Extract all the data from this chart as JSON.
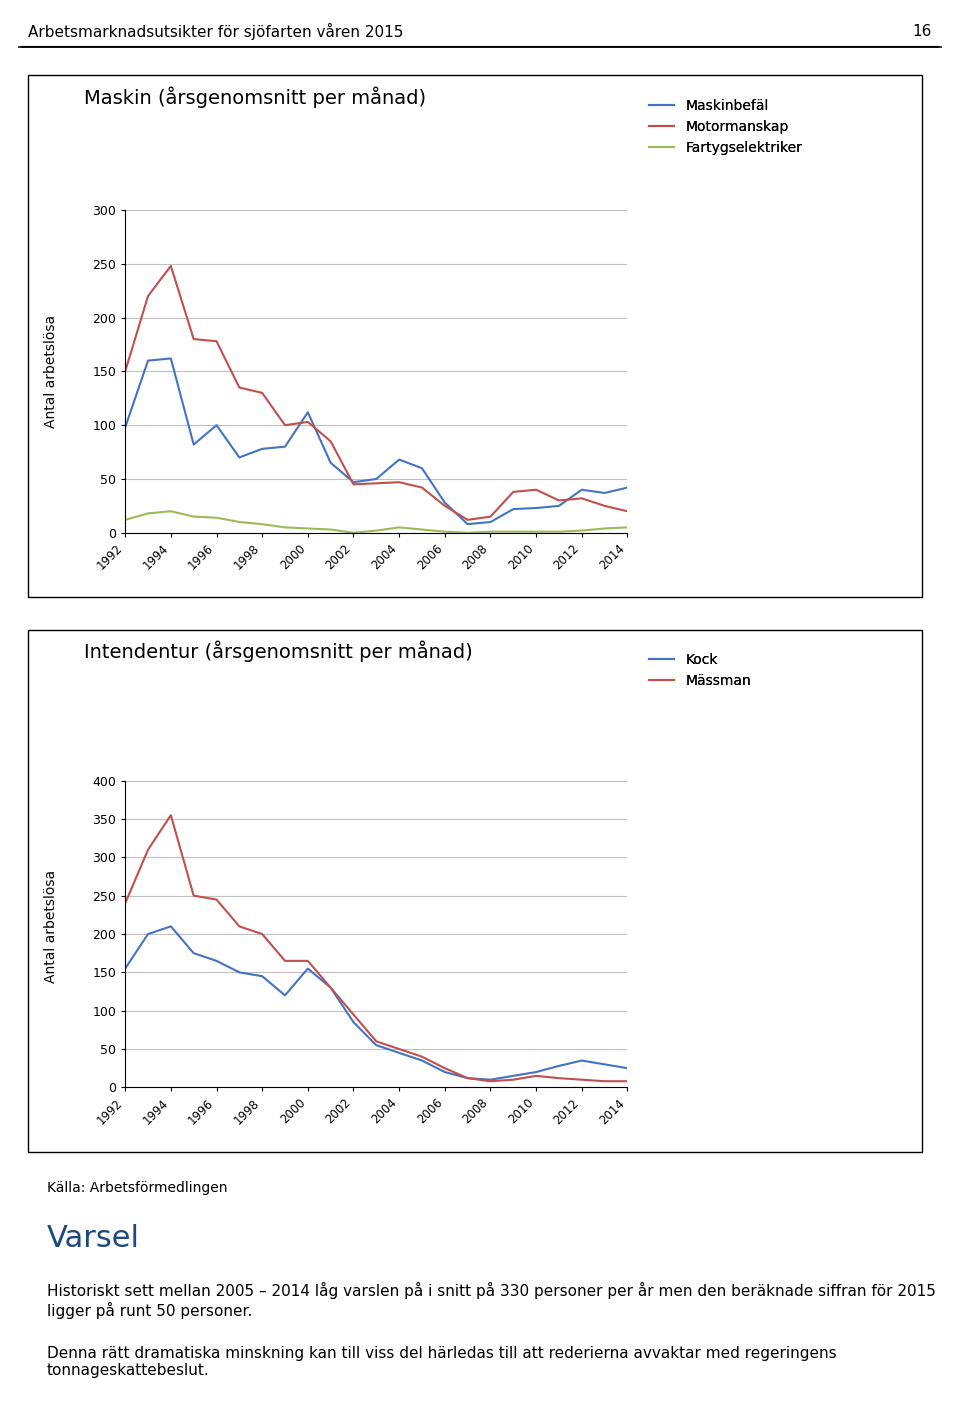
{
  "header_text": "Arbetsmarknadsutsikter för sjöfarten våren 2015",
  "page_number": "16",
  "chart1_title": "Maskin (årsgenomsnitt per månad)",
  "chart1_ylabel": "Antal arbetslösa",
  "chart1_ylim": [
    0,
    300
  ],
  "chart1_yticks": [
    0,
    50,
    100,
    150,
    200,
    250,
    300
  ],
  "chart1_legend": [
    "Maskinbefäl",
    "Motormanskap",
    "Fartygselektriker"
  ],
  "chart1_colors": [
    "#4472C4",
    "#C0504D",
    "#9BBB59"
  ],
  "years": [
    1992,
    1993,
    1994,
    1995,
    1996,
    1997,
    1998,
    1999,
    2000,
    2001,
    2002,
    2003,
    2004,
    2005,
    2006,
    2007,
    2008,
    2009,
    2010,
    2011,
    2012,
    2013,
    2014
  ],
  "maskinbefal": [
    98,
    160,
    162,
    82,
    100,
    70,
    78,
    80,
    112,
    65,
    47,
    50,
    68,
    60,
    28,
    8,
    10,
    22,
    23,
    25,
    40,
    37,
    42
  ],
  "motormanskap": [
    150,
    220,
    248,
    180,
    178,
    135,
    130,
    100,
    103,
    85,
    45,
    46,
    47,
    42,
    25,
    12,
    15,
    38,
    40,
    30,
    32,
    25,
    20
  ],
  "fartygselektriker": [
    12,
    18,
    20,
    15,
    14,
    10,
    8,
    5,
    4,
    3,
    0,
    2,
    5,
    3,
    1,
    0,
    1,
    1,
    1,
    1,
    2,
    4,
    5
  ],
  "chart2_title": "Intendentur (årsgenomsnitt per månad)",
  "chart2_ylabel": "Antal arbetslösa",
  "chart2_ylim": [
    0,
    400
  ],
  "chart2_yticks": [
    0,
    50,
    100,
    150,
    200,
    250,
    300,
    350,
    400
  ],
  "chart2_legend": [
    "Kock",
    "Mässman"
  ],
  "chart2_colors": [
    "#4472C4",
    "#C0504D"
  ],
  "kock": [
    155,
    200,
    210,
    175,
    165,
    150,
    145,
    120,
    155,
    130,
    85,
    55,
    45,
    35,
    20,
    12,
    10,
    15,
    20,
    28,
    35,
    30,
    25
  ],
  "massman": [
    240,
    310,
    355,
    250,
    245,
    210,
    200,
    165,
    165,
    130,
    95,
    60,
    50,
    40,
    25,
    12,
    8,
    10,
    15,
    12,
    10,
    8,
    8
  ],
  "source_text": "Källa: Arbetsförmedlingen",
  "varsel_title": "Varsel",
  "varsel_body": "Historiskt sett mellan 2005 – 2014 låg varslen på i snitt på 330 personer per år men den beräknade siffran för 2015 ligger på runt 50 personer.",
  "varsel_body2": "Denna rätt dramatiska minskning kan till viss del härledas till att rederierna avvaktar med regeringens tonnageskattebeslut."
}
